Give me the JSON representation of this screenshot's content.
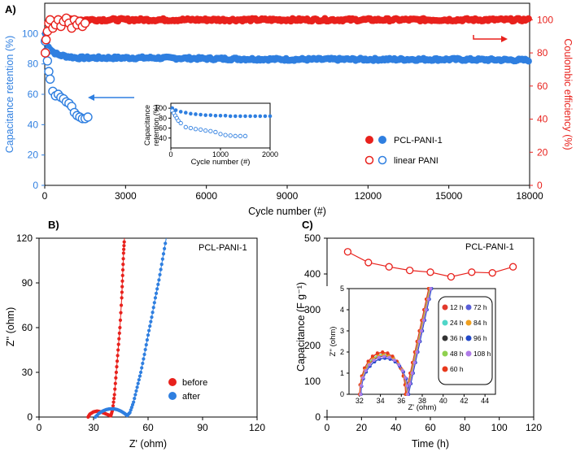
{
  "colors": {
    "blue": "#2f7fe0",
    "red": "#e8211c",
    "axis": "#000000",
    "legend_12h": "#e23a2d",
    "legend_24h": "#4fd6c8",
    "legend_36h": "#333333",
    "legend_48h": "#8fd14f",
    "legend_60h": "#e8391c",
    "legend_72h": "#5a5fd8",
    "legend_84h": "#f0a020",
    "legend_96h": "#2349c8",
    "legend_108h": "#b07be8"
  },
  "chart_data": [
    {
      "id": "A",
      "panel_label": "A)",
      "type": "scatter",
      "xlabel": "Cycle number (#)",
      "ylabel_left": "Capacitance retention (%)",
      "ylabel_right": "Coulombic efficiency (%)",
      "xlim": [
        0,
        18000
      ],
      "ylim_left": [
        0,
        120
      ],
      "ylim_right": [
        0,
        110
      ],
      "xticks": [
        "0",
        "3000",
        "6000",
        "9000",
        "12000",
        "15000",
        "18000"
      ],
      "yticks_left": [
        "0",
        "20",
        "40",
        "60",
        "80",
        "100"
      ],
      "yticks_right": [
        "0",
        "20",
        "40",
        "60",
        "80",
        "100"
      ],
      "legend": [
        "PCL-PANI-1",
        "linear PANI"
      ],
      "series": [
        {
          "name": "PCL-PANI-1 retention",
          "axis": "left",
          "color": "blue",
          "filled": true,
          "x": [
            20,
            100,
            200,
            300,
            500,
            800,
            1200,
            2000,
            4000,
            6000,
            9000,
            12000,
            15000,
            18000
          ],
          "y": [
            100,
            93,
            90,
            88,
            86,
            85,
            84,
            84,
            84,
            83.5,
            83,
            83,
            83,
            82.5
          ]
        },
        {
          "name": "linear PANI retention",
          "axis": "left",
          "color": "blue",
          "filled": false,
          "x": [
            20,
            60,
            100,
            150,
            200,
            300,
            400,
            500,
            600,
            700,
            800,
            900,
            1000,
            1100,
            1200,
            1300,
            1400,
            1500,
            1600
          ],
          "y": [
            95,
            88,
            82,
            75,
            70,
            62,
            59,
            60,
            58,
            57,
            55,
            54,
            52,
            48,
            46,
            45,
            44,
            44,
            45
          ]
        },
        {
          "name": "PCL-PANI-1 efficiency",
          "axis": "right",
          "color": "red",
          "filled": true,
          "x": [
            500,
            3000,
            6000,
            9000,
            12000,
            15000,
            18000
          ],
          "y": [
            100,
            100,
            100,
            100,
            100,
            100,
            100
          ]
        },
        {
          "name": "linear PANI efficiency",
          "axis": "right",
          "color": "red",
          "filled": false,
          "x": [
            20,
            50,
            100,
            150,
            200,
            300,
            400,
            500,
            600,
            700,
            800,
            900,
            1000,
            1100,
            1200,
            1300,
            1400,
            1500
          ],
          "y": [
            80,
            88,
            93,
            98,
            100,
            95,
            97,
            100,
            96,
            99,
            101,
            98,
            95,
            100,
            97,
            99,
            96,
            98
          ]
        }
      ]
    },
    {
      "id": "A-inset",
      "type": "scatter",
      "xlabel": "Cycle number (#)",
      "ylabel": "Capacitance\nretention (%)",
      "ylabel_lines": [
        "Capacitance",
        "retention (%)"
      ],
      "xlim": [
        0,
        2000
      ],
      "ylim": [
        20,
        110
      ],
      "xticks": [
        "0",
        "1000",
        "2000"
      ],
      "yticks": [
        "40",
        "60",
        "80",
        "100"
      ],
      "series": [
        {
          "name": "PCL-PANI-1",
          "color": "blue",
          "filled": true,
          "x": [
            30,
            100,
            200,
            300,
            400,
            500,
            600,
            700,
            800,
            900,
            1000,
            1100,
            1200,
            1300,
            1400,
            1500,
            1600,
            1700,
            1800,
            1900,
            2000
          ],
          "y": [
            100,
            96,
            93,
            91,
            89,
            88,
            87,
            86,
            86,
            85,
            85,
            85,
            84,
            84,
            84,
            84,
            84,
            84,
            84,
            84,
            84
          ]
        },
        {
          "name": "linear PANI",
          "color": "blue",
          "filled": false,
          "x": [
            30,
            60,
            90,
            120,
            150,
            200,
            300,
            400,
            500,
            600,
            700,
            800,
            900,
            1000,
            1100,
            1200,
            1300,
            1400,
            1500
          ],
          "y": [
            95,
            90,
            85,
            80,
            75,
            70,
            62,
            60,
            58,
            57,
            55,
            54,
            52,
            48,
            46,
            45,
            44,
            44,
            44
          ]
        }
      ]
    },
    {
      "id": "B",
      "panel_label": "B)",
      "type": "line",
      "annotation": "PCL-PANI-1",
      "xlabel": "Z' (ohm)",
      "ylabel": "Z'' (ohm)",
      "xlim": [
        0,
        120
      ],
      "ylim": [
        0,
        120
      ],
      "xticks": [
        "0",
        "30",
        "60",
        "90",
        "120"
      ],
      "yticks": [
        "0",
        "30",
        "60",
        "90",
        "120"
      ],
      "legend": [
        "before",
        "after"
      ],
      "series": [
        {
          "name": "before",
          "color": "red",
          "x": [
            27,
            28,
            30,
            32,
            34,
            36,
            38,
            39.5,
            40.5,
            41.5,
            42.5,
            43.5,
            44.5,
            45.5,
            46,
            46.5,
            47
          ],
          "y": [
            0,
            2,
            3.5,
            4,
            3.5,
            2.5,
            1.5,
            0.8,
            5,
            15,
            30,
            45,
            60,
            80,
            95,
            110,
            120
          ]
        },
        {
          "name": "after",
          "color": "blue",
          "x": [
            31,
            33,
            35,
            37,
            39,
            41,
            43,
            45,
            47,
            48.5,
            50,
            52,
            54,
            56,
            58,
            60,
            62,
            64,
            66,
            68,
            70
          ],
          "y": [
            0,
            2.5,
            4,
            5,
            5.5,
            5.5,
            5,
            4,
            2.5,
            1,
            3,
            10,
            20,
            30,
            42,
            55,
            67,
            80,
            92,
            106,
            120
          ]
        }
      ]
    },
    {
      "id": "C",
      "panel_label": "C)",
      "type": "line",
      "annotation": "PCL-PANI-1",
      "xlabel": "Time (h)",
      "ylabel": "Capacitance (F g⁻¹)",
      "xlim": [
        0,
        120
      ],
      "ylim": [
        0,
        500
      ],
      "xticks": [
        "0",
        "20",
        "40",
        "60",
        "80",
        "100",
        "120"
      ],
      "yticks": [
        "0",
        "100",
        "200",
        "300",
        "400",
        "500"
      ],
      "series": [
        {
          "name": "capacitance",
          "color": "red",
          "x": [
            12,
            24,
            36,
            48,
            60,
            72,
            84,
            96,
            108
          ],
          "y": [
            462,
            432,
            420,
            410,
            405,
            392,
            405,
            403,
            420
          ]
        }
      ]
    },
    {
      "id": "C-inset",
      "type": "line",
      "xlabel": "Z' (ohm)",
      "ylabel": "Z'' (ohm)",
      "xlim": [
        31,
        45
      ],
      "ylim": [
        0,
        5
      ],
      "xticks": [
        "32",
        "34",
        "36",
        "38",
        "40",
        "42",
        "44"
      ],
      "yticks": [
        "0",
        "1",
        "2",
        "3",
        "4",
        "5"
      ],
      "legend": [
        "12 h",
        "24 h",
        "36 h",
        "48 h",
        "60 h",
        "72 h",
        "84 h",
        "96 h",
        "108 h"
      ],
      "series": [
        {
          "name": "12 h",
          "color": "legend_12h",
          "offset": 0
        },
        {
          "name": "24 h",
          "color": "legend_24h",
          "offset": 0.15
        },
        {
          "name": "36 h",
          "color": "legend_36h",
          "offset": 0.3
        },
        {
          "name": "48 h",
          "color": "legend_48h",
          "offset": 0.2
        },
        {
          "name": "60 h",
          "color": "legend_60h",
          "offset": 0.05
        },
        {
          "name": "72 h",
          "color": "legend_72h",
          "offset": 0.45
        },
        {
          "name": "84 h",
          "color": "legend_84h",
          "offset": 0.25
        },
        {
          "name": "96 h",
          "color": "legend_96h",
          "offset": 0.5
        },
        {
          "name": "108 h",
          "color": "legend_108h",
          "offset": 0.35
        }
      ]
    }
  ]
}
